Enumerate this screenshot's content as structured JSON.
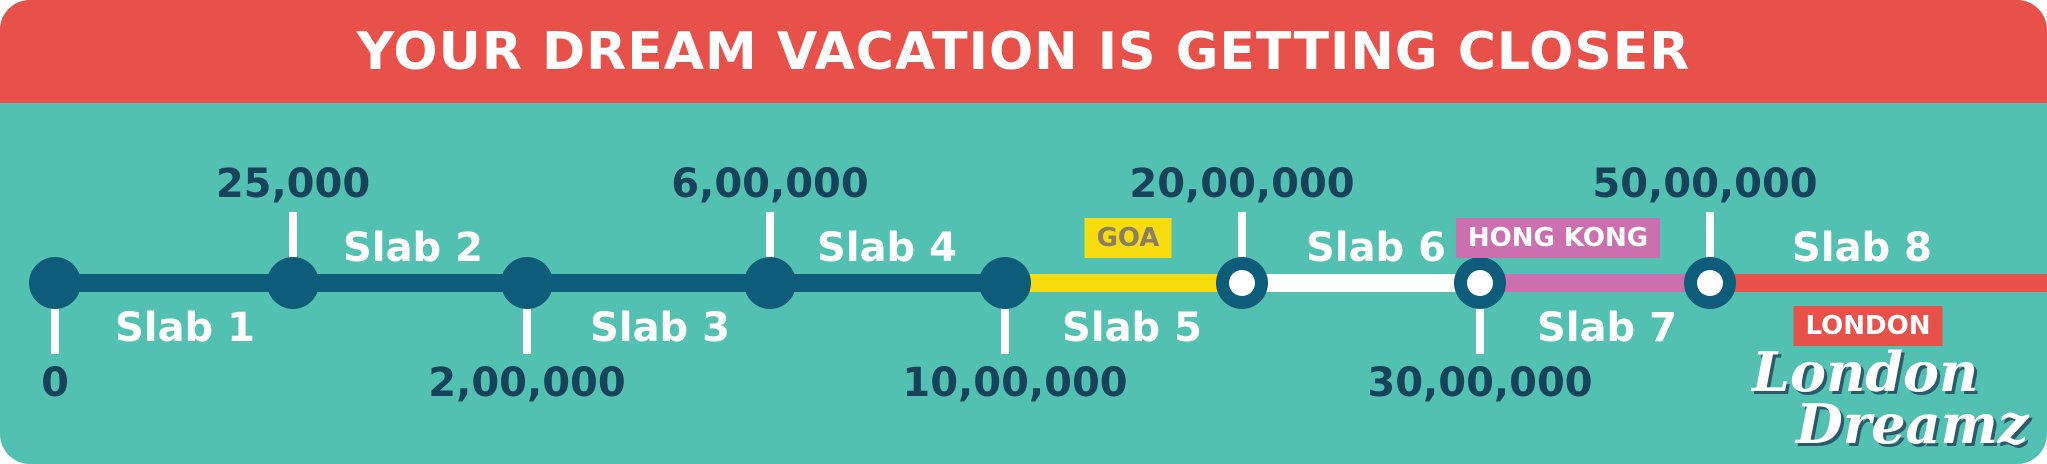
{
  "header": {
    "title": "YOUR DREAM VACATION IS GETTING CLOSER"
  },
  "colors": {
    "header_bg": "#e8504a",
    "panel_bg": "#53c1b1",
    "line_navy": "#0d5d7a",
    "goa_yellow": "#f7dc10",
    "hong_kong_pink": "#cc6fae",
    "london_red": "#e8504a",
    "text_navy": "#16435a"
  },
  "timeline": {
    "milestones": [
      {
        "amount": "0",
        "label_side": "below",
        "style": "filled"
      },
      {
        "amount": "25,000",
        "label_side": "above",
        "style": "filled"
      },
      {
        "amount": "2,00,000",
        "label_side": "below",
        "style": "filled"
      },
      {
        "amount": "6,00,000",
        "label_side": "above",
        "style": "filled"
      },
      {
        "amount": "10,00,000",
        "label_side": "below",
        "style": "filled"
      },
      {
        "amount": "20,00,000",
        "label_side": "above",
        "style": "ring"
      },
      {
        "amount": "30,00,000",
        "label_side": "below",
        "style": "ring"
      },
      {
        "amount": "50,00,000",
        "label_side": "above",
        "style": "ring"
      }
    ],
    "slabs": [
      {
        "label": "Slab 1",
        "side": "below",
        "color": "#0d5d7a"
      },
      {
        "label": "Slab 2",
        "side": "above",
        "color": "#0d5d7a"
      },
      {
        "label": "Slab 3",
        "side": "below",
        "color": "#0d5d7a"
      },
      {
        "label": "Slab 4",
        "side": "above",
        "color": "#0d5d7a"
      },
      {
        "label": "Slab 5",
        "side": "below",
        "color": "#f7dc10"
      },
      {
        "label": "Slab 6",
        "side": "above",
        "color": "#ffffff"
      },
      {
        "label": "Slab 7",
        "side": "below",
        "color": "#cc6fae"
      },
      {
        "label": "Slab 8",
        "side": "above",
        "color": "#e8504a"
      }
    ],
    "destinations": {
      "goa": "GOA",
      "hong_kong": "HONG KONG",
      "london": "LONDON"
    }
  },
  "logo": {
    "line1": "London",
    "line2": "Dreamz"
  }
}
